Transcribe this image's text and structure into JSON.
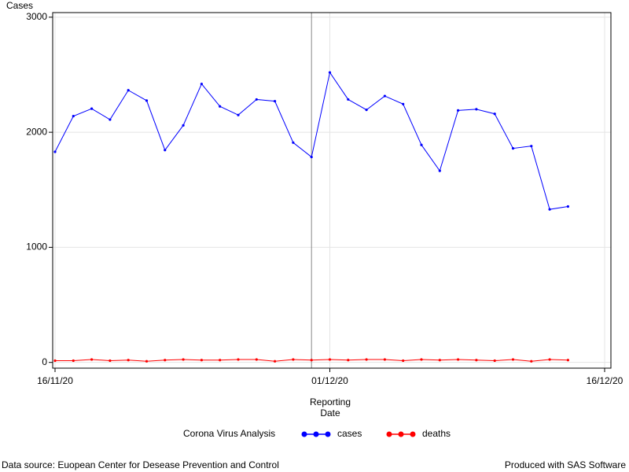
{
  "chart_data": {
    "type": "line",
    "ylabel": "Cases",
    "xlabel": [
      "Reporting",
      "Date"
    ],
    "legend_title": "Corona Virus Analysis",
    "footnote_left": "Data source: Euopean Center for Desease Prevention and Control",
    "footnote_right": "Produced with SAS Software",
    "x": [
      "2020-11-16",
      "2020-11-17",
      "2020-11-18",
      "2020-11-19",
      "2020-11-20",
      "2020-11-21",
      "2020-11-22",
      "2020-11-23",
      "2020-11-24",
      "2020-11-25",
      "2020-11-26",
      "2020-11-27",
      "2020-11-28",
      "2020-11-29",
      "2020-11-30",
      "2020-12-01",
      "2020-12-02",
      "2020-12-03",
      "2020-12-04",
      "2020-12-05",
      "2020-12-06",
      "2020-12-07",
      "2020-12-08",
      "2020-12-09",
      "2020-12-10",
      "2020-12-11",
      "2020-12-12",
      "2020-12-13",
      "2020-12-14"
    ],
    "series": [
      {
        "name": "cases",
        "color": "#0000ff",
        "values": [
          1830,
          2140,
          2205,
          2110,
          2365,
          2275,
          1845,
          2060,
          2420,
          2225,
          2150,
          2285,
          2270,
          1910,
          1785,
          2520,
          2285,
          2195,
          2315,
          2245,
          1890,
          1665,
          2190,
          2200,
          2160,
          1860,
          1880,
          1330,
          1355
        ]
      },
      {
        "name": "deaths",
        "color": "#ff0000",
        "values": [
          15,
          15,
          25,
          15,
          20,
          10,
          20,
          25,
          20,
          20,
          25,
          25,
          10,
          25,
          20,
          25,
          20,
          25,
          25,
          15,
          25,
          20,
          25,
          20,
          15,
          25,
          10,
          25,
          20
        ]
      }
    ],
    "xlim": [
      "2020-11-16",
      "2020-12-16"
    ],
    "xticks": [
      {
        "value": "2020-11-16",
        "label": "16/11/20"
      },
      {
        "value": "2020-12-01",
        "label": "01/12/20"
      },
      {
        "value": "2020-12-16",
        "label": "16/12/20"
      }
    ],
    "ylim": [
      -50,
      3040
    ],
    "yticks": [
      0,
      1000,
      2000,
      3000
    ],
    "reference_line_x": "2020-11-30",
    "grid": true
  }
}
